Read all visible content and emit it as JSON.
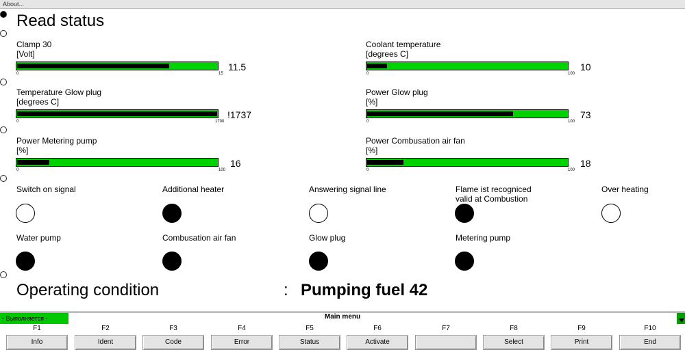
{
  "window": {
    "menu_label": "About..."
  },
  "title": "Read status",
  "gauges": [
    {
      "label": "Clamp 30",
      "unit": "[Volt]",
      "min": "0",
      "max": "15",
      "value_text": "11.5",
      "fill_fraction": 0.76
    },
    {
      "label": "Coolant temperature",
      "unit": "[degrees C]",
      "min": "0",
      "max": "100",
      "value_text": "10",
      "fill_fraction": 0.1
    },
    {
      "label": "Temperature Glow plug",
      "unit": "[degrees C]",
      "min": "0",
      "max": "1700",
      "value_text": "!1737",
      "fill_fraction": 1.0
    },
    {
      "label": "Power Glow plug",
      "unit": "[%]",
      "min": "0",
      "max": "100",
      "value_text": "73",
      "fill_fraction": 0.73
    },
    {
      "label": "Power Metering pump",
      "unit": "[%]",
      "min": "0",
      "max": "100",
      "value_text": "16",
      "fill_fraction": 0.16
    },
    {
      "label": "Power Combusation air fan",
      "unit": "[%]",
      "min": "0",
      "max": "100",
      "value_text": "18",
      "fill_fraction": 0.18
    }
  ],
  "indicators": [
    {
      "label": "Switch on signal",
      "on": false
    },
    {
      "label": "Additional heater",
      "on": true
    },
    {
      "label": "Answering signal line",
      "on": false
    },
    {
      "label": "Flame ist recogniced\nvalid at Combustion",
      "on": true
    },
    {
      "label": "Over heating",
      "on": false
    },
    {
      "label": "Water pump",
      "on": true
    },
    {
      "label": "Combusation air fan",
      "on": true
    },
    {
      "label": "Glow plug",
      "on": true
    },
    {
      "label": "Metering pump",
      "on": true
    }
  ],
  "operating": {
    "label": "Operating condition",
    "separator": ":",
    "value": "Pumping fuel 42"
  },
  "status_bar": {
    "status_text": "- Выполняется -",
    "menu_title": "Main menu"
  },
  "function_keys": [
    {
      "key": "F1",
      "label": "Info"
    },
    {
      "key": "F2",
      "label": "Ident"
    },
    {
      "key": "F3",
      "label": "Code"
    },
    {
      "key": "F4",
      "label": "Error"
    },
    {
      "key": "F5",
      "label": "Status"
    },
    {
      "key": "F6",
      "label": "Activate"
    },
    {
      "key": "F7",
      "label": ""
    },
    {
      "key": "F8",
      "label": "Select"
    },
    {
      "key": "F9",
      "label": "Print"
    },
    {
      "key": "F10",
      "label": "End"
    }
  ],
  "colors": {
    "bar_green": "#00d200",
    "status_green": "#00c800"
  }
}
